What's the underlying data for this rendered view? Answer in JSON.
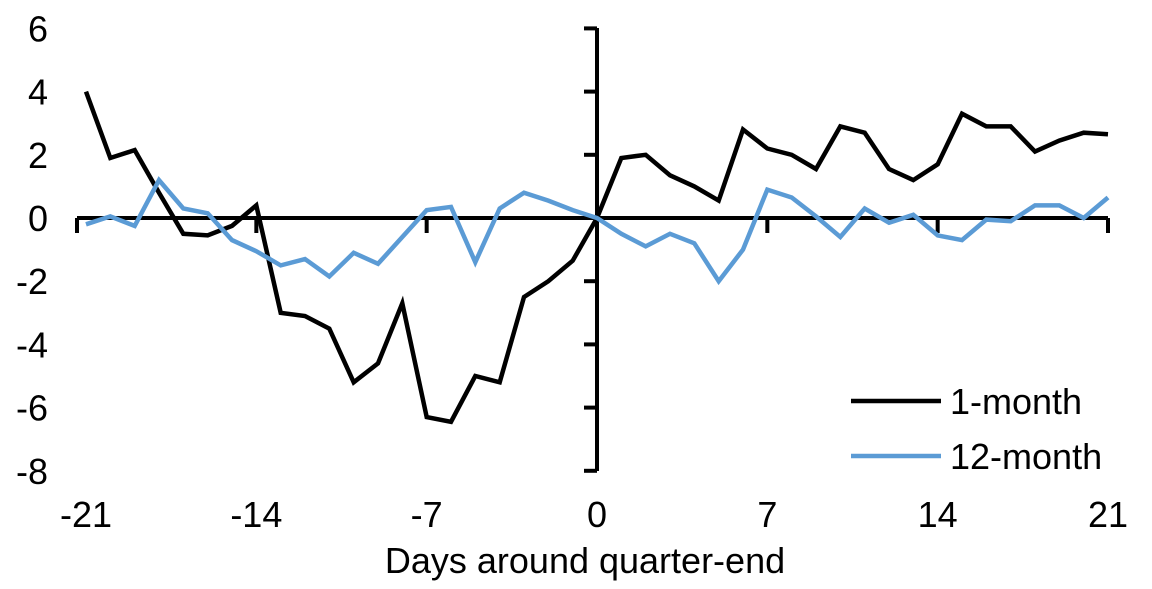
{
  "chart_data": {
    "type": "line",
    "xlabel": "Days around quarter-end",
    "x": [
      -21,
      -20,
      -19,
      -18,
      -17,
      -16,
      -15,
      -14,
      -13,
      -12,
      -11,
      -10,
      -9,
      -8,
      -7,
      -6,
      -5,
      -4,
      -3,
      -2,
      -1,
      0,
      1,
      2,
      3,
      4,
      5,
      6,
      7,
      8,
      9,
      10,
      11,
      12,
      13,
      14,
      15,
      16,
      17,
      18,
      19,
      20,
      21
    ],
    "series": [
      {
        "name": "1-month",
        "color": "#000000",
        "values": [
          4.0,
          1.9,
          2.15,
          0.8,
          -0.5,
          -0.55,
          -0.25,
          0.4,
          -3.0,
          -3.1,
          -3.5,
          -5.2,
          -4.6,
          -2.7,
          -6.3,
          -6.45,
          -5.0,
          -5.2,
          -2.5,
          -2.0,
          -1.35,
          0.0,
          1.9,
          2.0,
          1.35,
          1.0,
          0.55,
          2.8,
          2.2,
          2.0,
          1.55,
          2.9,
          2.7,
          1.55,
          1.2,
          1.7,
          3.3,
          2.9,
          2.9,
          2.1,
          2.45,
          2.7,
          2.65
        ]
      },
      {
        "name": "12-month",
        "color": "#5B9BD5",
        "values": [
          -0.2,
          0.05,
          -0.25,
          1.2,
          0.3,
          0.15,
          -0.7,
          -1.05,
          -1.5,
          -1.3,
          -1.85,
          -1.1,
          -1.45,
          -0.6,
          0.25,
          0.35,
          -1.4,
          0.3,
          0.8,
          0.55,
          0.25,
          0.0,
          -0.5,
          -0.9,
          -0.5,
          -0.8,
          -2.0,
          -1.0,
          0.9,
          0.65,
          0.05,
          -0.6,
          0.3,
          -0.15,
          0.1,
          -0.55,
          -0.7,
          -0.05,
          -0.1,
          0.4,
          0.4,
          0.0,
          0.65
        ]
      }
    ],
    "x_ticks": [
      -21,
      -14,
      -7,
      0,
      7,
      14,
      21
    ],
    "y_ticks": [
      6,
      4,
      2,
      0,
      -2,
      -4,
      -6,
      -8
    ],
    "xlim": [
      -21.4,
      21
    ],
    "ylim": [
      -8,
      6
    ],
    "grid": false,
    "legend_position": "inside-bottom-right",
    "axis_color": "#000000",
    "background_color": "#ffffff"
  }
}
